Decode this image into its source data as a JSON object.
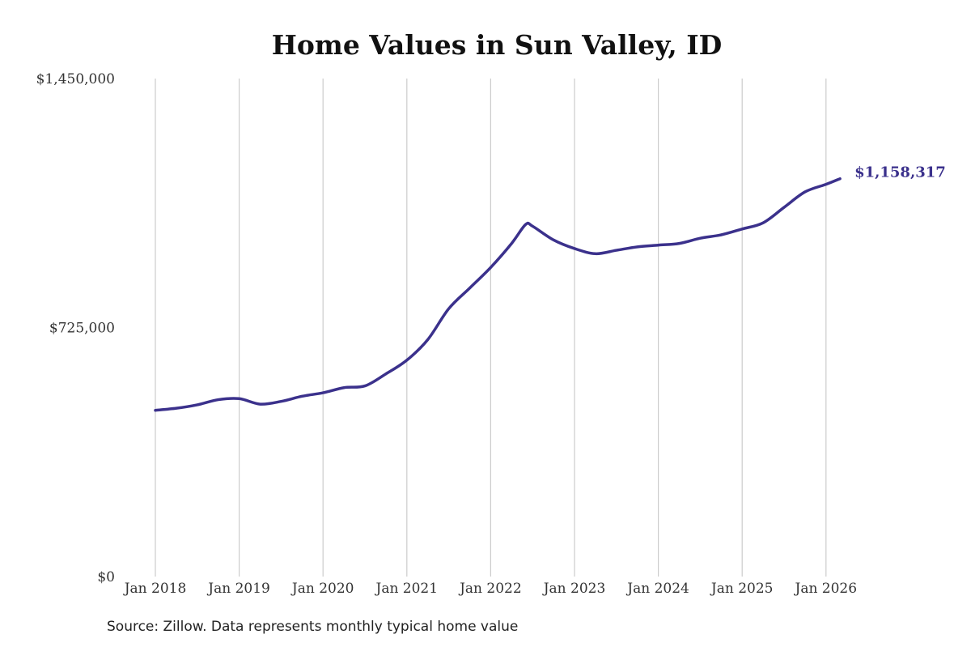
{
  "chart_data": {
    "type": "line",
    "title": "Home Values in Sun Valley, ID",
    "xlabel": "",
    "ylabel": "",
    "x_tick_labels": [
      "Jan 2018",
      "Jan 2019",
      "Jan 2020",
      "Jan 2021",
      "Jan 2022",
      "Jan 2023",
      "Jan 2024",
      "Jan 2025",
      "Jan 2026"
    ],
    "y_tick_labels": [
      "$0",
      "$725,000",
      "$1,450,000"
    ],
    "y_ticks": [
      0,
      725000,
      1450000
    ],
    "ylim": [
      0,
      1450000
    ],
    "xlim": [
      "2018-01",
      "2026-03"
    ],
    "grid": "vertical gridlines at each January",
    "line_color": "#3b318c",
    "gridline_color": "#cccccc",
    "end_label": "$1,158,317",
    "series": [
      {
        "x": [
          "2018-01",
          "2018-04",
          "2018-07",
          "2018-10",
          "2019-01",
          "2019-04",
          "2019-07",
          "2019-10",
          "2020-01",
          "2020-04",
          "2020-07",
          "2020-10",
          "2021-01",
          "2021-04",
          "2021-07",
          "2021-10",
          "2022-01",
          "2022-04",
          "2022-06",
          "2022-07",
          "2022-10",
          "2023-01",
          "2023-04",
          "2023-07",
          "2023-10",
          "2024-01",
          "2024-04",
          "2024-07",
          "2024-10",
          "2025-01",
          "2025-04",
          "2025-07",
          "2025-10",
          "2026-01",
          "2026-03"
        ],
        "y": [
          484000,
          490000,
          500000,
          515000,
          518000,
          502000,
          510000,
          525000,
          535000,
          550000,
          555000,
          590000,
          630000,
          690000,
          780000,
          840000,
          900000,
          970000,
          1025000,
          1020000,
          980000,
          955000,
          940000,
          950000,
          960000,
          965000,
          970000,
          985000,
          995000,
          1012000,
          1030000,
          1075000,
          1120000,
          1142000,
          1158317
        ]
      }
    ]
  },
  "source_note": "Source: Zillow. Data represents monthly typical home value"
}
